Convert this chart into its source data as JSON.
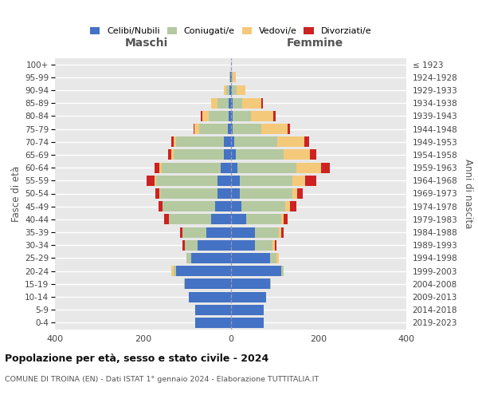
{
  "age_groups_bottom_to_top": [
    "0-4",
    "5-9",
    "10-14",
    "15-19",
    "20-24",
    "25-29",
    "30-34",
    "35-39",
    "40-44",
    "45-49",
    "50-54",
    "55-59",
    "60-64",
    "65-69",
    "70-74",
    "75-79",
    "80-84",
    "85-89",
    "90-94",
    "95-99",
    "100+"
  ],
  "birth_years_bottom_to_top": [
    "2019-2023",
    "2014-2018",
    "2009-2013",
    "2004-2008",
    "1999-2003",
    "1994-1998",
    "1989-1993",
    "1984-1988",
    "1979-1983",
    "1974-1978",
    "1969-1973",
    "1964-1968",
    "1959-1963",
    "1954-1958",
    "1949-1953",
    "1944-1948",
    "1939-1943",
    "1934-1938",
    "1929-1933",
    "1924-1928",
    "≤ 1923"
  ],
  "maschi_celibi": [
    80,
    80,
    95,
    105,
    125,
    90,
    75,
    55,
    45,
    35,
    30,
    30,
    22,
    15,
    15,
    7,
    5,
    5,
    2,
    1,
    0
  ],
  "maschi_coniugati": [
    0,
    0,
    0,
    2,
    5,
    10,
    30,
    55,
    95,
    120,
    130,
    140,
    135,
    115,
    110,
    65,
    45,
    25,
    8,
    2,
    0
  ],
  "maschi_vedovi": [
    0,
    0,
    0,
    0,
    5,
    0,
    0,
    0,
    1,
    1,
    2,
    3,
    5,
    5,
    5,
    10,
    15,
    15,
    5,
    0,
    0
  ],
  "maschi_divorziati": [
    0,
    0,
    0,
    0,
    0,
    0,
    5,
    5,
    10,
    8,
    10,
    18,
    12,
    8,
    5,
    3,
    3,
    0,
    0,
    0,
    0
  ],
  "femmine_nubili": [
    75,
    75,
    80,
    90,
    115,
    90,
    55,
    55,
    35,
    25,
    20,
    20,
    15,
    12,
    8,
    5,
    5,
    5,
    3,
    2,
    0
  ],
  "femmine_coniugate": [
    0,
    0,
    0,
    2,
    5,
    15,
    40,
    55,
    80,
    100,
    120,
    120,
    135,
    108,
    98,
    65,
    42,
    22,
    10,
    2,
    0
  ],
  "femmine_vedove": [
    0,
    0,
    0,
    0,
    0,
    5,
    5,
    5,
    5,
    10,
    12,
    30,
    55,
    60,
    62,
    60,
    50,
    42,
    20,
    8,
    0
  ],
  "femmine_divorziate": [
    0,
    0,
    0,
    0,
    0,
    0,
    5,
    5,
    10,
    15,
    12,
    25,
    20,
    15,
    10,
    5,
    5,
    5,
    0,
    0,
    0
  ],
  "color_celibi": "#4472c4",
  "color_coniugati": "#b5c9a1",
  "color_vedovi": "#f5c97a",
  "color_divorziati": "#cc2222",
  "bg_color": "#e8e8e8",
  "grid_color": "#ffffff",
  "title": "Popolazione per età, sesso e stato civile - 2024",
  "subtitle": "COMUNE DI TROINA (EN) - Dati ISTAT 1° gennaio 2024 - Elaborazione TUTTITALIA.IT",
  "header_left": "Maschi",
  "header_right": "Femmine",
  "ylabel_left": "Fasce di età",
  "ylabel_right": "Anni di nascita",
  "legend_labels": [
    "Celibi/Nubili",
    "Coniugati/e",
    "Vedovi/e",
    "Divorziati/e"
  ],
  "xlim": 400
}
